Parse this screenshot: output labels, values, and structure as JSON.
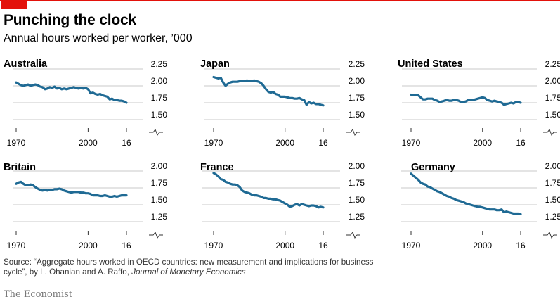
{
  "title": "Punching the clock",
  "subtitle": "Annual hours worked per worker, ’000",
  "source": {
    "prefix": "Source: “Aggregate hours worked in OECD countries: new measurement and implications for business cycle”, by  L. Ohanian and A. Raffo,",
    "journal": "Journal of Monetary Economics"
  },
  "brand": "The Economist",
  "colors": {
    "line": "#1f6a94",
    "accent": "#e3120b",
    "grid": "#b8b8b8"
  },
  "chart_data": [
    {
      "type": "line",
      "title": "Australia",
      "x_ticks": [
        "1970",
        "2000",
        "16"
      ],
      "x_range": [
        1970,
        2016
      ],
      "ylim": [
        1.5,
        2.25
      ],
      "y_ticks": [
        "2.25",
        "2.00",
        "1.75",
        "1.50"
      ],
      "x": [
        1970,
        1971,
        1972,
        1973,
        1974,
        1975,
        1976,
        1977,
        1978,
        1979,
        1980,
        1981,
        1982,
        1983,
        1984,
        1985,
        1986,
        1987,
        1988,
        1989,
        1990,
        1991,
        1992,
        1993,
        1994,
        1995,
        1996,
        1997,
        1998,
        1999,
        2000,
        2001,
        2002,
        2003,
        2004,
        2005,
        2006,
        2007,
        2008,
        2009,
        2010,
        2011,
        2012,
        2013,
        2014,
        2015,
        2016
      ],
      "values": [
        2.05,
        2.03,
        2.01,
        2.0,
        2.01,
        2.02,
        2.0,
        2.01,
        2.02,
        2.01,
        1.99,
        1.98,
        1.95,
        1.96,
        1.98,
        1.97,
        1.99,
        1.96,
        1.97,
        1.95,
        1.96,
        1.95,
        1.96,
        1.97,
        1.98,
        1.97,
        1.96,
        1.97,
        1.96,
        1.97,
        1.95,
        1.89,
        1.9,
        1.88,
        1.87,
        1.88,
        1.86,
        1.85,
        1.84,
        1.8,
        1.81,
        1.79,
        1.79,
        1.78,
        1.78,
        1.77,
        1.75
      ]
    },
    {
      "type": "line",
      "title": "Japan",
      "x_ticks": [
        "1970",
        "2000",
        "16"
      ],
      "x_range": [
        1970,
        2016
      ],
      "ylim": [
        1.5,
        2.25
      ],
      "y_ticks": [
        "2.25",
        "2.00",
        "1.75",
        "1.50"
      ],
      "x": [
        1970,
        1971,
        1972,
        1973,
        1974,
        1975,
        1976,
        1977,
        1978,
        1979,
        1980,
        1981,
        1982,
        1983,
        1984,
        1985,
        1986,
        1987,
        1988,
        1989,
        1990,
        1991,
        1992,
        1993,
        1994,
        1995,
        1996,
        1997,
        1998,
        1999,
        2000,
        2001,
        2002,
        2003,
        2004,
        2005,
        2006,
        2007,
        2008,
        2009,
        2010,
        2011,
        2012,
        2013,
        2014,
        2015,
        2016
      ],
      "values": [
        2.13,
        2.12,
        2.11,
        2.12,
        2.05,
        2.0,
        2.03,
        2.05,
        2.06,
        2.06,
        2.06,
        2.07,
        2.07,
        2.07,
        2.08,
        2.07,
        2.07,
        2.08,
        2.07,
        2.06,
        2.04,
        2.0,
        1.95,
        1.91,
        1.9,
        1.91,
        1.88,
        1.87,
        1.84,
        1.84,
        1.84,
        1.83,
        1.82,
        1.82,
        1.81,
        1.81,
        1.82,
        1.8,
        1.79,
        1.72,
        1.76,
        1.74,
        1.75,
        1.73,
        1.73,
        1.72,
        1.71
      ]
    },
    {
      "type": "line",
      "title": "United States",
      "x_ticks": [
        "1970",
        "2000",
        "16"
      ],
      "x_range": [
        1970,
        2016
      ],
      "ylim": [
        1.5,
        2.25
      ],
      "y_ticks": [
        "2.25",
        "2.00",
        "1.75",
        "1.50"
      ],
      "x": [
        1970,
        1971,
        1972,
        1973,
        1974,
        1975,
        1976,
        1977,
        1978,
        1979,
        1980,
        1981,
        1982,
        1983,
        1984,
        1985,
        1986,
        1987,
        1988,
        1989,
        1990,
        1991,
        1992,
        1993,
        1994,
        1995,
        1996,
        1997,
        1998,
        1999,
        2000,
        2001,
        2002,
        2003,
        2004,
        2005,
        2006,
        2007,
        2008,
        2009,
        2010,
        2011,
        2012,
        2013,
        2014,
        2015,
        2016
      ],
      "values": [
        1.87,
        1.86,
        1.86,
        1.86,
        1.83,
        1.8,
        1.8,
        1.81,
        1.81,
        1.81,
        1.79,
        1.78,
        1.76,
        1.77,
        1.78,
        1.79,
        1.78,
        1.78,
        1.79,
        1.79,
        1.78,
        1.76,
        1.76,
        1.77,
        1.79,
        1.79,
        1.79,
        1.8,
        1.81,
        1.82,
        1.83,
        1.82,
        1.79,
        1.78,
        1.77,
        1.78,
        1.77,
        1.76,
        1.75,
        1.72,
        1.73,
        1.74,
        1.75,
        1.74,
        1.76,
        1.76,
        1.75
      ]
    },
    {
      "type": "line",
      "title": "Britain",
      "x_ticks": [
        "1970",
        "2000",
        "16"
      ],
      "x_range": [
        1970,
        2016
      ],
      "ylim": [
        1.25,
        2.0
      ],
      "y_ticks": [
        "2.00",
        "1.75",
        "1.50",
        "1.25"
      ],
      "x": [
        1970,
        1971,
        1972,
        1973,
        1974,
        1975,
        1976,
        1977,
        1978,
        1979,
        1980,
        1981,
        1982,
        1983,
        1984,
        1985,
        1986,
        1987,
        1988,
        1989,
        1990,
        1991,
        1992,
        1993,
        1994,
        1995,
        1996,
        1997,
        1998,
        1999,
        2000,
        2001,
        2002,
        2003,
        2004,
        2005,
        2006,
        2007,
        2008,
        2009,
        2010,
        2011,
        2012,
        2013,
        2014,
        2015,
        2016
      ],
      "values": [
        1.81,
        1.83,
        1.84,
        1.81,
        1.79,
        1.79,
        1.8,
        1.79,
        1.76,
        1.74,
        1.72,
        1.71,
        1.72,
        1.71,
        1.72,
        1.72,
        1.73,
        1.73,
        1.74,
        1.73,
        1.71,
        1.7,
        1.69,
        1.68,
        1.69,
        1.69,
        1.69,
        1.68,
        1.68,
        1.67,
        1.67,
        1.66,
        1.64,
        1.64,
        1.64,
        1.63,
        1.63,
        1.64,
        1.63,
        1.62,
        1.62,
        1.63,
        1.62,
        1.63,
        1.64,
        1.64,
        1.64
      ]
    },
    {
      "type": "line",
      "title": "France",
      "x_ticks": [
        "1970",
        "2000",
        "16"
      ],
      "x_range": [
        1970,
        2016
      ],
      "ylim": [
        1.25,
        2.0
      ],
      "y_ticks": [
        "2.00",
        "1.75",
        "1.50",
        "1.25"
      ],
      "x": [
        1970,
        1971,
        1972,
        1973,
        1974,
        1975,
        1976,
        1977,
        1978,
        1979,
        1980,
        1981,
        1982,
        1983,
        1984,
        1985,
        1986,
        1987,
        1988,
        1989,
        1990,
        1991,
        1992,
        1993,
        1994,
        1995,
        1996,
        1997,
        1998,
        1999,
        2000,
        2001,
        2002,
        2003,
        2004,
        2005,
        2006,
        2007,
        2008,
        2009,
        2010,
        2011,
        2012,
        2013,
        2014,
        2015,
        2016
      ],
      "values": [
        1.97,
        1.95,
        1.92,
        1.88,
        1.87,
        1.84,
        1.83,
        1.81,
        1.8,
        1.8,
        1.79,
        1.76,
        1.71,
        1.69,
        1.68,
        1.67,
        1.65,
        1.64,
        1.64,
        1.63,
        1.62,
        1.6,
        1.6,
        1.59,
        1.59,
        1.58,
        1.58,
        1.57,
        1.56,
        1.54,
        1.52,
        1.5,
        1.47,
        1.48,
        1.5,
        1.51,
        1.49,
        1.51,
        1.5,
        1.49,
        1.48,
        1.49,
        1.49,
        1.48,
        1.46,
        1.47,
        1.46
      ]
    },
    {
      "type": "line",
      "title": "Germany",
      "x_ticks": [
        "1970",
        "2000",
        "16"
      ],
      "x_range": [
        1970,
        2016
      ],
      "ylim": [
        1.25,
        2.0
      ],
      "y_ticks": [
        "2.00",
        "1.75",
        "1.50",
        "1.25"
      ],
      "x": [
        1970,
        1971,
        1972,
        1973,
        1974,
        1975,
        1976,
        1977,
        1978,
        1979,
        1980,
        1981,
        1982,
        1983,
        1984,
        1985,
        1986,
        1987,
        1988,
        1989,
        1990,
        1991,
        1992,
        1993,
        1994,
        1995,
        1996,
        1997,
        1998,
        1999,
        2000,
        2001,
        2002,
        2003,
        2004,
        2005,
        2006,
        2007,
        2008,
        2009,
        2010,
        2011,
        2012,
        2013,
        2014,
        2015,
        2016
      ],
      "values": [
        1.96,
        1.93,
        1.9,
        1.87,
        1.83,
        1.81,
        1.8,
        1.77,
        1.76,
        1.74,
        1.72,
        1.7,
        1.69,
        1.67,
        1.65,
        1.63,
        1.62,
        1.6,
        1.59,
        1.57,
        1.56,
        1.55,
        1.54,
        1.52,
        1.51,
        1.5,
        1.49,
        1.48,
        1.47,
        1.47,
        1.46,
        1.45,
        1.44,
        1.43,
        1.43,
        1.43,
        1.42,
        1.42,
        1.43,
        1.39,
        1.4,
        1.39,
        1.38,
        1.37,
        1.37,
        1.37,
        1.36
      ]
    }
  ]
}
